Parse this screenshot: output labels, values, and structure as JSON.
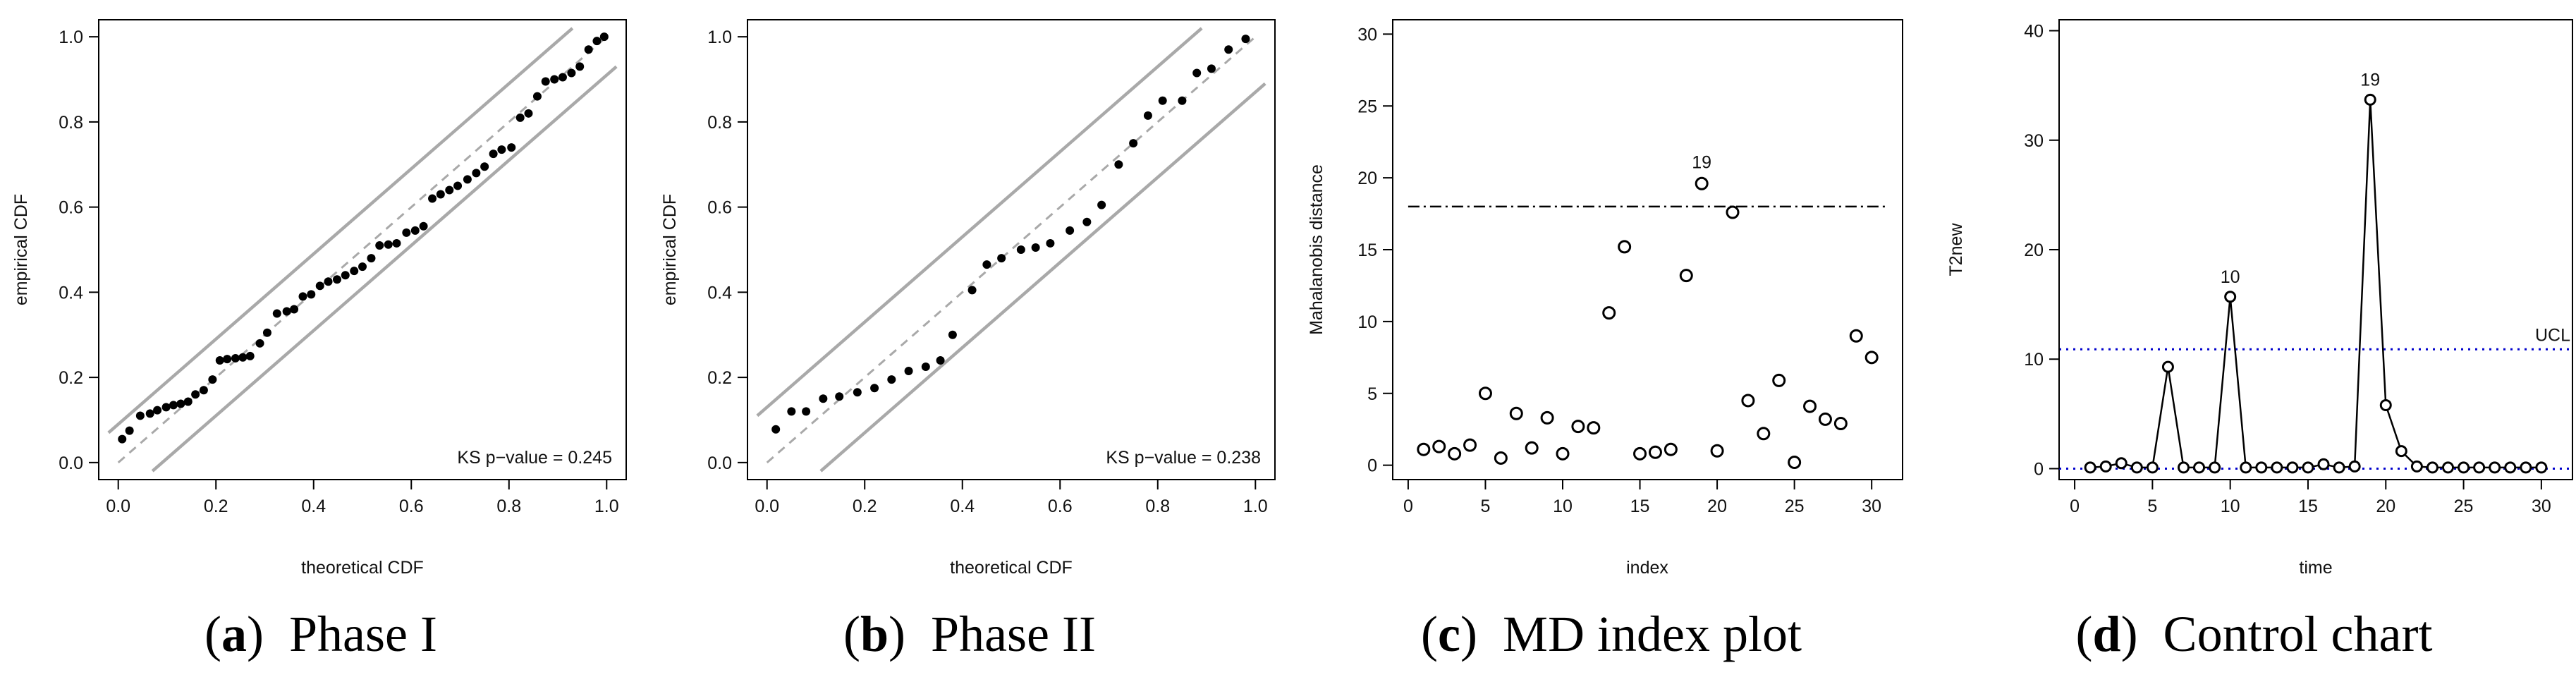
{
  "colors": {
    "points": "#000000",
    "band": "#a9a9a9",
    "diag": "#a9a9a9",
    "limit_line": "#000000",
    "ucl": "#0000cc",
    "zero_line": "#0000cc"
  },
  "panels": [
    {
      "tag": "a",
      "caption": "Phase I"
    },
    {
      "tag": "b",
      "caption": "Phase II"
    },
    {
      "tag": "c",
      "caption": "MD index plot"
    },
    {
      "tag": "d",
      "caption": "Control chart"
    }
  ],
  "chart_data": [
    {
      "type": "scatter",
      "title": "",
      "xlabel": "theoretical CDF",
      "ylabel": "empirical CDF",
      "xlim": [
        0,
        1
      ],
      "ylim": [
        0,
        1
      ],
      "xticks": [
        "0.0",
        "0.2",
        "0.4",
        "0.6",
        "0.8",
        "1.0"
      ],
      "yticks": [
        "0.0",
        "0.2",
        "0.4",
        "0.6",
        "0.8",
        "1.0"
      ],
      "annotation": "KS p−value = 0.245",
      "reference_line": {
        "slope": 1,
        "intercept": 0,
        "style": "dashed"
      },
      "band": {
        "lower_intercept": -0.09,
        "upper_intercept": 0.09
      },
      "x": [
        0.008,
        0.023,
        0.045,
        0.065,
        0.08,
        0.098,
        0.113,
        0.128,
        0.143,
        0.158,
        0.175,
        0.193,
        0.208,
        0.223,
        0.24,
        0.255,
        0.27,
        0.29,
        0.305,
        0.325,
        0.345,
        0.36,
        0.378,
        0.395,
        0.413,
        0.43,
        0.448,
        0.465,
        0.483,
        0.5,
        0.518,
        0.535,
        0.553,
        0.57,
        0.59,
        0.608,
        0.625,
        0.643,
        0.66,
        0.678,
        0.695,
        0.715,
        0.733,
        0.75,
        0.768,
        0.785,
        0.805,
        0.823,
        0.84,
        0.858,
        0.875,
        0.893,
        0.91,
        0.928,
        0.945,
        0.963,
        0.98,
        0.995
      ],
      "y": [
        0.055,
        0.075,
        0.11,
        0.115,
        0.123,
        0.13,
        0.135,
        0.138,
        0.143,
        0.16,
        0.17,
        0.195,
        0.24,
        0.243,
        0.245,
        0.247,
        0.25,
        0.28,
        0.305,
        0.35,
        0.355,
        0.36,
        0.39,
        0.395,
        0.415,
        0.425,
        0.43,
        0.44,
        0.45,
        0.46,
        0.48,
        0.51,
        0.512,
        0.515,
        0.54,
        0.545,
        0.555,
        0.62,
        0.63,
        0.64,
        0.65,
        0.665,
        0.68,
        0.695,
        0.725,
        0.735,
        0.74,
        0.81,
        0.82,
        0.86,
        0.895,
        0.9,
        0.905,
        0.915,
        0.93,
        0.97,
        0.99,
        1.0
      ]
    },
    {
      "type": "scatter",
      "title": "",
      "xlabel": "theoretical CDF",
      "ylabel": "empirical CDF",
      "xlim": [
        0,
        1
      ],
      "ylim": [
        0,
        1
      ],
      "xticks": [
        "0.0",
        "0.2",
        "0.4",
        "0.6",
        "0.8",
        "1.0"
      ],
      "yticks": [
        "0.0",
        "0.2",
        "0.4",
        "0.6",
        "0.8",
        "1.0"
      ],
      "annotation": "KS p−value = 0.238",
      "reference_line": {
        "slope": 1,
        "intercept": 0,
        "style": "dashed"
      },
      "band": {
        "lower_intercept": -0.13,
        "upper_intercept": 0.13
      },
      "x": [
        0.018,
        0.05,
        0.08,
        0.115,
        0.148,
        0.185,
        0.22,
        0.255,
        0.29,
        0.325,
        0.355,
        0.38,
        0.42,
        0.45,
        0.48,
        0.52,
        0.55,
        0.58,
        0.62,
        0.655,
        0.685,
        0.72,
        0.75,
        0.78,
        0.81,
        0.85,
        0.88,
        0.91,
        0.945,
        0.98
      ],
      "y": [
        0.078,
        0.12,
        0.12,
        0.15,
        0.155,
        0.165,
        0.175,
        0.195,
        0.215,
        0.225,
        0.24,
        0.3,
        0.405,
        0.465,
        0.48,
        0.5,
        0.505,
        0.515,
        0.545,
        0.565,
        0.605,
        0.7,
        0.75,
        0.815,
        0.85,
        0.85,
        0.915,
        0.925,
        0.97,
        0.995
      ]
    },
    {
      "type": "scatter",
      "title": "",
      "xlabel": "index",
      "ylabel": "Mahalanobis distance",
      "xlim": [
        -1,
        32
      ],
      "ylim": [
        -1,
        31
      ],
      "xticks": [
        "0",
        "5",
        "10",
        "15",
        "20",
        "25",
        "30"
      ],
      "yticks": [
        "0",
        "5",
        "10",
        "15",
        "20",
        "25",
        "30"
      ],
      "threshold": 18,
      "labeled_point": {
        "x": 19,
        "label": "19"
      },
      "x": [
        1,
        2,
        3,
        4,
        5,
        6,
        7,
        8,
        9,
        10,
        11,
        12,
        13,
        14,
        15,
        16,
        17,
        18,
        19,
        20,
        21,
        22,
        23,
        24,
        25,
        26,
        27,
        28,
        29,
        30
      ],
      "y": [
        1.1,
        1.3,
        0.8,
        1.4,
        5.0,
        0.5,
        3.6,
        1.2,
        3.3,
        0.8,
        2.7,
        2.6,
        10.6,
        15.2,
        0.8,
        0.9,
        1.1,
        13.2,
        19.6,
        1.0,
        17.6,
        4.5,
        2.2,
        5.9,
        0.2,
        4.1,
        3.2,
        2.9,
        9.0,
        7.5
      ]
    },
    {
      "type": "line",
      "title": "",
      "xlabel": "time",
      "ylabel": "T2new",
      "xlim": [
        -1,
        32
      ],
      "ylim": [
        -1,
        41
      ],
      "xticks": [
        "0",
        "5",
        "10",
        "15",
        "20",
        "25",
        "30"
      ],
      "yticks": [
        "0",
        "10",
        "20",
        "30",
        "40"
      ],
      "ucl_label": "UCL",
      "ucl": 10.9,
      "center": 0,
      "labeled_points": [
        {
          "x": 10,
          "label": "10"
        },
        {
          "x": 19,
          "label": "19"
        }
      ],
      "x": [
        1,
        2,
        3,
        4,
        5,
        6,
        7,
        8,
        9,
        10,
        11,
        12,
        13,
        14,
        15,
        16,
        17,
        18,
        19,
        20,
        21,
        22,
        23,
        24,
        25,
        26,
        27,
        28,
        29,
        30
      ],
      "y": [
        0.1,
        0.2,
        0.5,
        0.1,
        0.1,
        9.3,
        0.1,
        0.1,
        0.1,
        15.7,
        0.1,
        0.1,
        0.1,
        0.1,
        0.1,
        0.4,
        0.1,
        0.2,
        33.7,
        5.8,
        1.6,
        0.2,
        0.1,
        0.1,
        0.1,
        0.1,
        0.1,
        0.1,
        0.1,
        0.1
      ]
    }
  ]
}
